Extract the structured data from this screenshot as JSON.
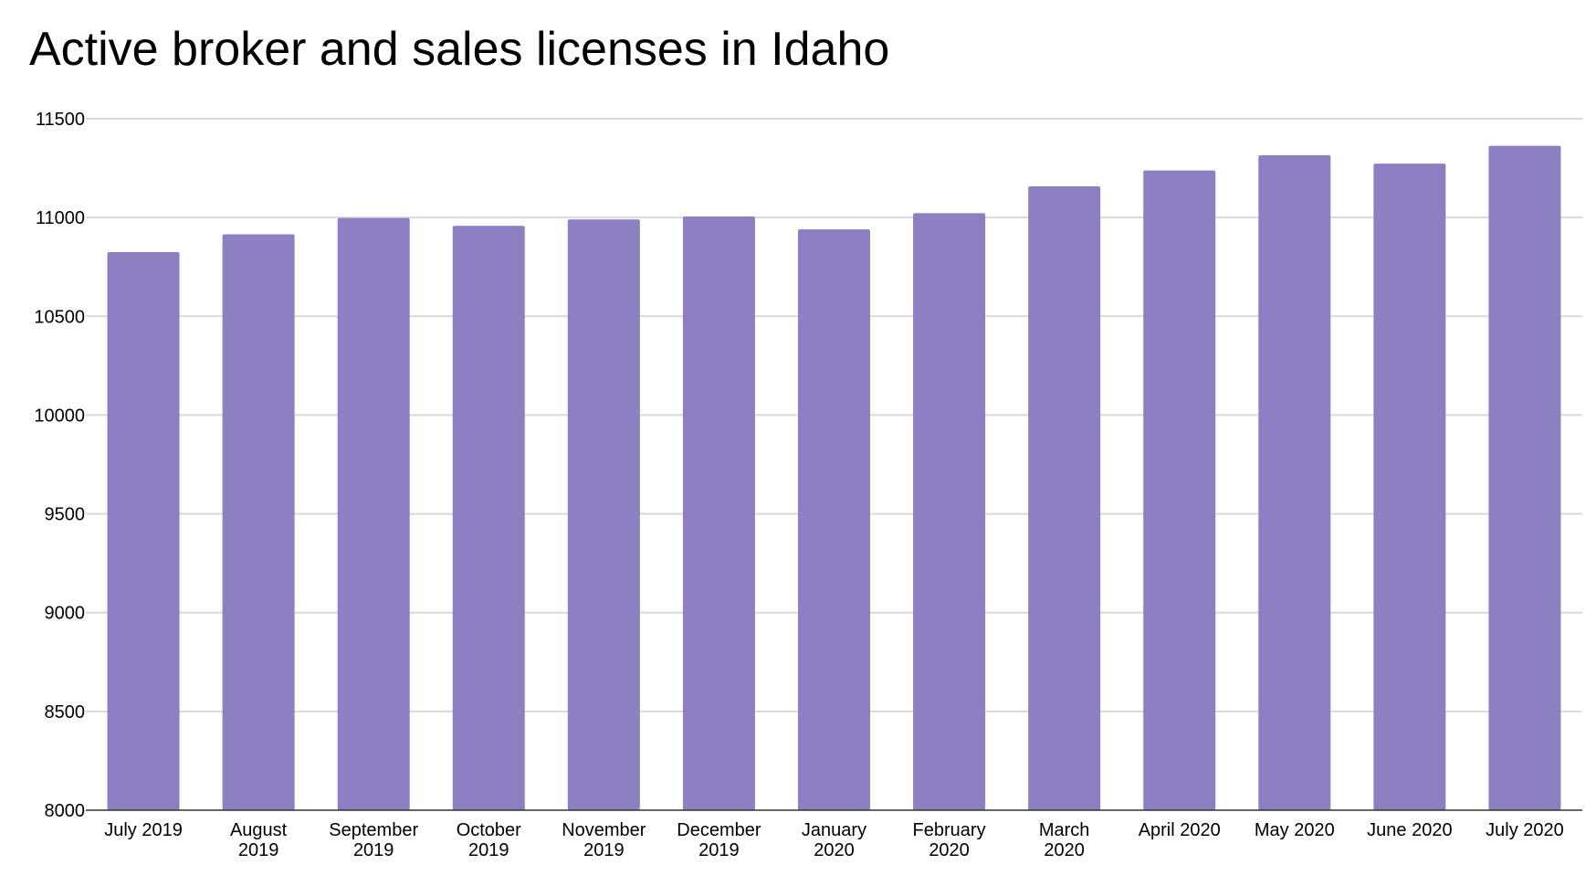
{
  "chart_data": {
    "type": "bar",
    "title": "Active broker and sales licenses in Idaho",
    "xlabel": "",
    "ylabel": "",
    "categories": [
      [
        "July 2019"
      ],
      [
        "August",
        "2019"
      ],
      [
        "September",
        "2019"
      ],
      [
        "October",
        "2019"
      ],
      [
        "November",
        "2019"
      ],
      [
        "December",
        "2019"
      ],
      [
        "January",
        "2020"
      ],
      [
        "February",
        "2020"
      ],
      [
        "March",
        "2020"
      ],
      [
        "April 2020"
      ],
      [
        "May 2020"
      ],
      [
        "June 2020"
      ],
      [
        "July 2020"
      ]
    ],
    "values": [
      10825,
      10915,
      10998,
      10958,
      10990,
      11005,
      10940,
      11022,
      11158,
      11238,
      11315,
      11273,
      11363
    ],
    "ylim": [
      8000,
      11500
    ],
    "yticks": [
      8000,
      8500,
      9000,
      9500,
      10000,
      10500,
      11000,
      11500
    ],
    "grid": true,
    "legend": "none",
    "colors": {
      "bar": "#8e7fc3",
      "grid": "#d9d9d9",
      "baseline": "#333333",
      "text": "#000000"
    }
  }
}
